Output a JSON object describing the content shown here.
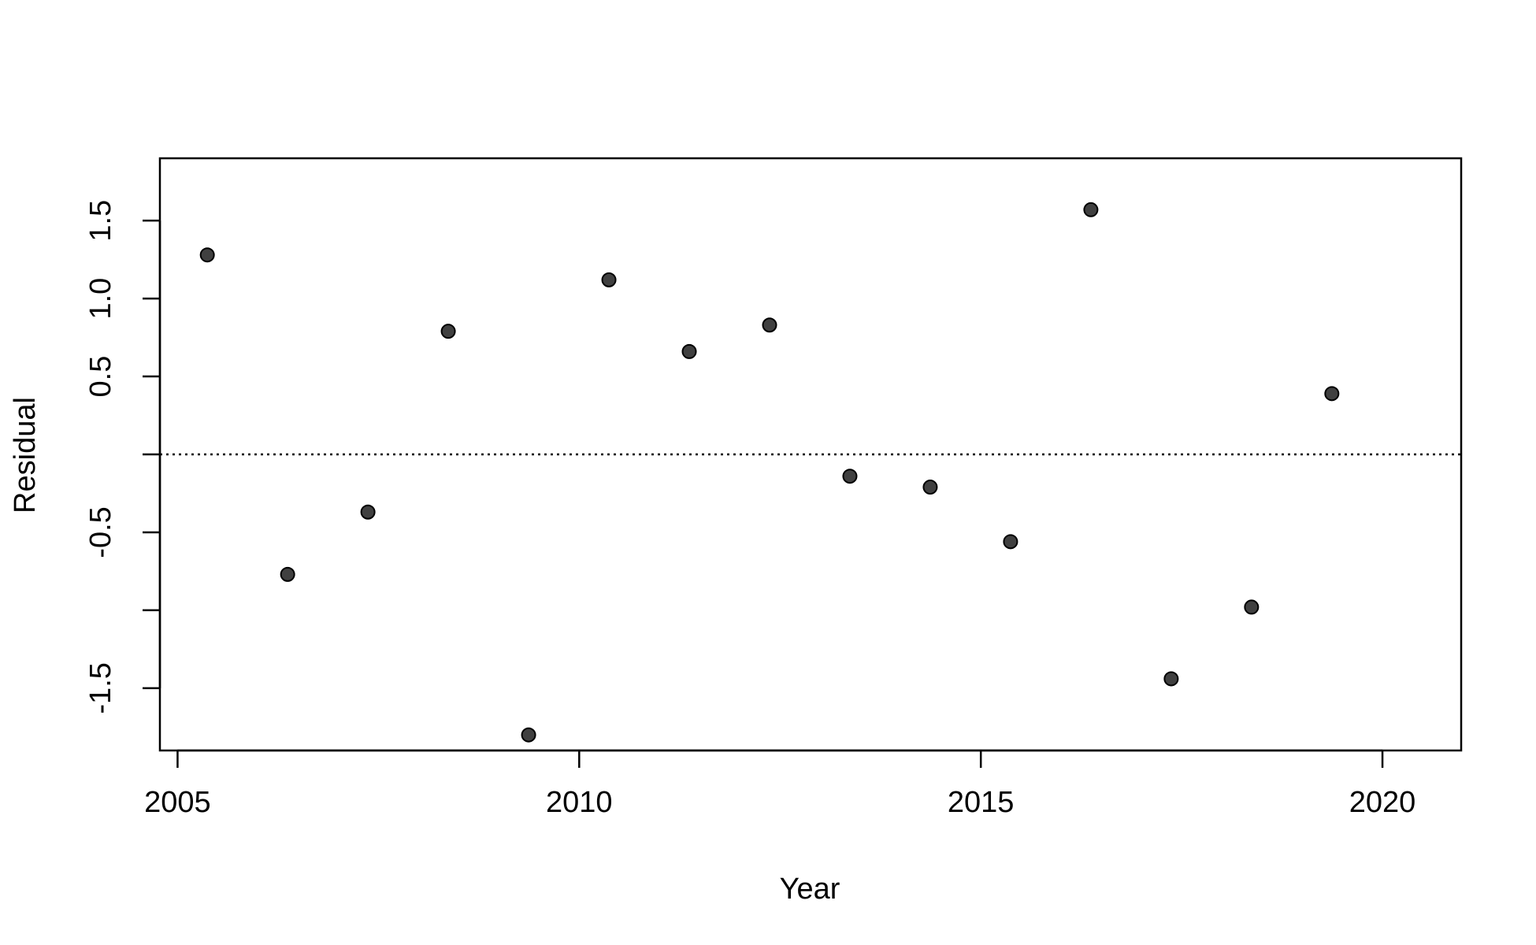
{
  "chart_data": {
    "type": "scatter",
    "title": "",
    "xlabel": "Year",
    "ylabel": "Residual",
    "xlim": [
      2004.78,
      2020.98
    ],
    "ylim": [
      -1.9,
      1.9
    ],
    "x_ticks": [
      2005,
      2010,
      2015,
      2020
    ],
    "x_tick_labels": [
      "2005",
      "2010",
      "2015",
      "2020"
    ],
    "y_ticks": [
      -1.5,
      -1.0,
      -0.5,
      0.0,
      0.5,
      1.0,
      1.5
    ],
    "y_tick_labels": [
      "-1.5",
      "",
      "-0.5",
      "",
      "0.5",
      "1.0",
      "1.5"
    ],
    "reference_line": {
      "y": 0,
      "style": "dotted"
    },
    "grid": false,
    "legend": "none",
    "point_color": "#404040",
    "series": [
      {
        "x": [
          2005.37,
          2006.37,
          2007.37,
          2008.37,
          2009.37,
          2010.37,
          2011.37,
          2012.37,
          2013.37,
          2014.37,
          2015.37,
          2016.37,
          2017.37,
          2018.37,
          2019.37
        ],
        "y": [
          1.28,
          -0.77,
          -0.37,
          0.79,
          -1.8,
          1.12,
          0.66,
          0.83,
          -0.14,
          -0.21,
          -0.56,
          1.57,
          -1.44,
          -0.98,
          0.39
        ]
      }
    ]
  }
}
